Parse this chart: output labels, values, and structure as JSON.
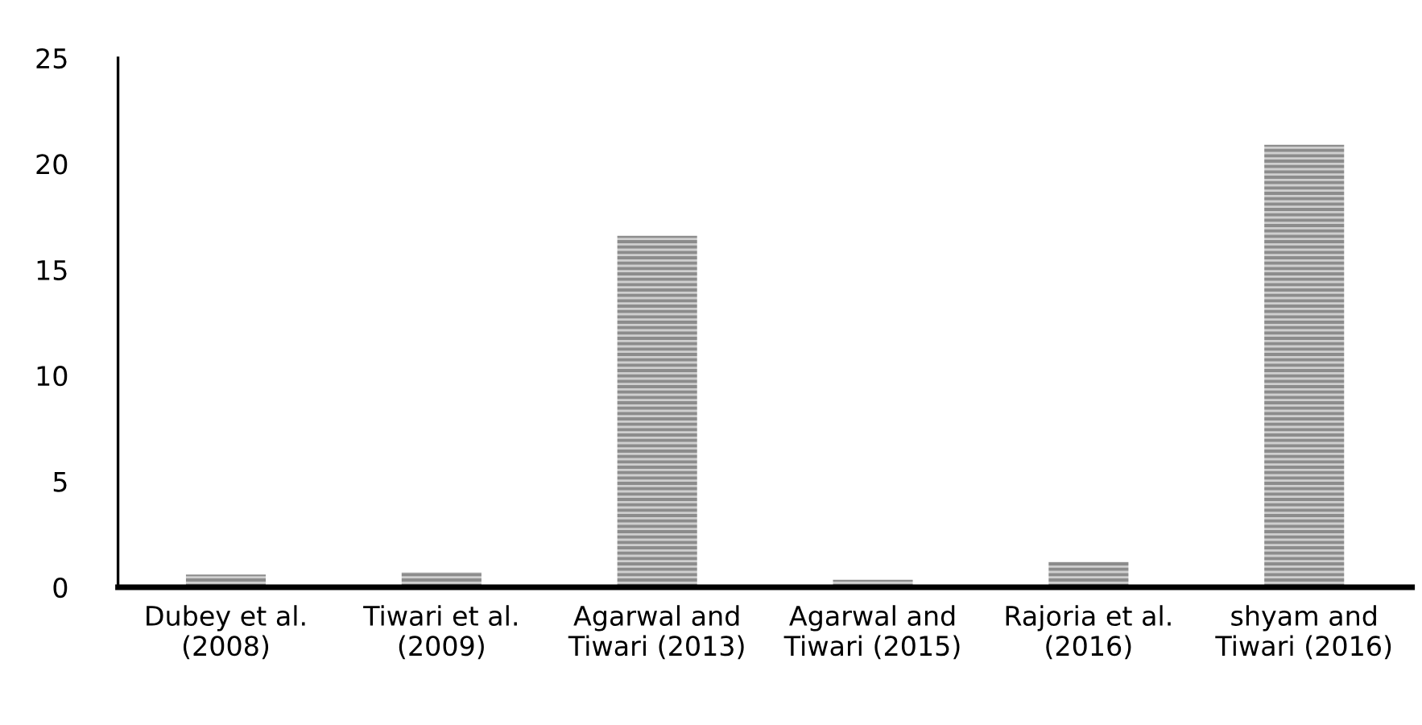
{
  "chart_data": {
    "type": "bar",
    "categories": [
      "Dubey et al.\n(2008)",
      "Tiwari et al.\n(2009)",
      "Agarwal and\nTiwari (2013)",
      "Agarwal and\nTiwari (2015)",
      "Rajoria et al.\n(2016)",
      "shyam and\nTiwari (2016)"
    ],
    "values": [
      0.6,
      0.7,
      16.6,
      0.35,
      1.2,
      20.9
    ],
    "color": "#8c8c8c",
    "ylim": [
      0,
      25
    ],
    "yticks": [
      0,
      5,
      10,
      15,
      20,
      25
    ],
    "grid": false
  }
}
